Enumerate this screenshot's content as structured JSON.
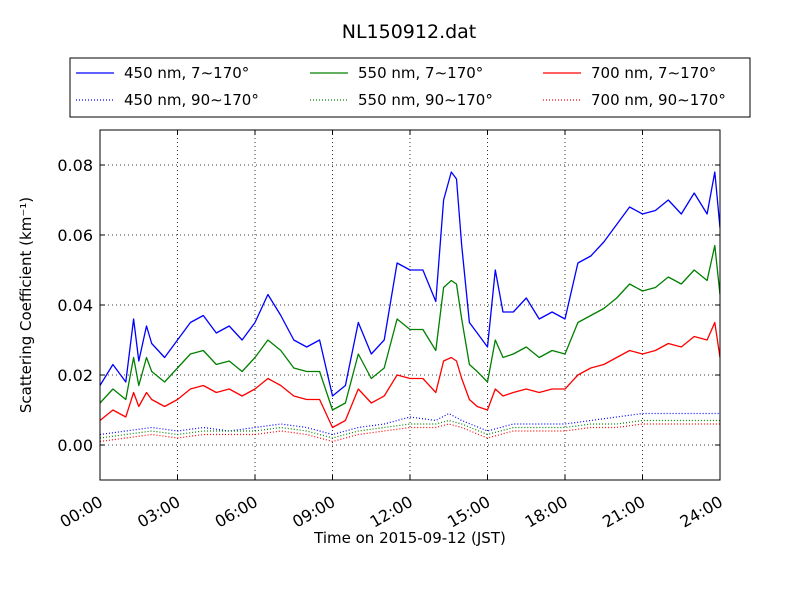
{
  "chart_data": {
    "type": "line",
    "title": "NL150912.dat",
    "xlabel": "Time on 2015-09-12 (JST)",
    "ylabel": "Scattering Coefficient (km⁻¹)",
    "x_range": [
      0,
      24
    ],
    "ylim": [
      -0.01,
      0.09
    ],
    "x_ticks": [
      "00:00",
      "03:00",
      "06:00",
      "09:00",
      "12:00",
      "15:00",
      "18:00",
      "21:00",
      "24:00"
    ],
    "y_ticks": [
      "0.00",
      "0.02",
      "0.04",
      "0.06",
      "0.08"
    ],
    "grid": true,
    "legend_position": "top, above plot",
    "x_unit": "hours since 00:00 JST",
    "series": [
      {
        "name": "450 nm, 7∼170°",
        "color": "#0000ff",
        "style": "solid",
        "x": [
          0,
          0.5,
          1,
          1.3,
          1.5,
          1.8,
          2,
          2.5,
          3,
          3.5,
          4,
          4.5,
          5,
          5.5,
          6,
          6.5,
          7,
          7.5,
          8,
          8.5,
          9,
          9.5,
          10,
          10.5,
          11,
          11.5,
          12,
          12.5,
          13,
          13.3,
          13.6,
          13.8,
          14,
          14.3,
          14.6,
          15,
          15.3,
          15.6,
          16,
          16.5,
          17,
          17.5,
          18,
          18.5,
          19,
          19.5,
          20,
          20.5,
          21,
          21.5,
          22,
          22.5,
          23,
          23.5,
          23.8,
          24
        ],
        "values": [
          0.017,
          0.023,
          0.018,
          0.036,
          0.024,
          0.034,
          0.029,
          0.025,
          0.03,
          0.035,
          0.037,
          0.032,
          0.034,
          0.03,
          0.035,
          0.043,
          0.037,
          0.03,
          0.028,
          0.03,
          0.014,
          0.017,
          0.035,
          0.026,
          0.03,
          0.052,
          0.05,
          0.05,
          0.041,
          0.07,
          0.078,
          0.076,
          0.057,
          0.035,
          0.032,
          0.028,
          0.05,
          0.038,
          0.038,
          0.042,
          0.036,
          0.038,
          0.036,
          0.052,
          0.054,
          0.058,
          0.063,
          0.068,
          0.066,
          0.067,
          0.07,
          0.066,
          0.072,
          0.066,
          0.078,
          0.062
        ]
      },
      {
        "name": "450 nm, 90∼170°",
        "color": "#0000ff",
        "style": "dotted",
        "x": [
          0,
          1,
          2,
          3,
          4,
          5,
          6,
          7,
          8,
          9,
          10,
          11,
          12,
          13,
          13.5,
          14,
          15,
          16,
          17,
          18,
          19,
          20,
          21,
          22,
          23,
          24
        ],
        "values": [
          0.003,
          0.004,
          0.005,
          0.004,
          0.005,
          0.004,
          0.005,
          0.006,
          0.005,
          0.003,
          0.005,
          0.006,
          0.008,
          0.007,
          0.009,
          0.007,
          0.004,
          0.006,
          0.006,
          0.006,
          0.007,
          0.008,
          0.009,
          0.009,
          0.009,
          0.009
        ]
      },
      {
        "name": "550 nm, 7∼170°",
        "color": "#008000",
        "style": "solid",
        "x": [
          0,
          0.5,
          1,
          1.3,
          1.5,
          1.8,
          2,
          2.5,
          3,
          3.5,
          4,
          4.5,
          5,
          5.5,
          6,
          6.5,
          7,
          7.5,
          8,
          8.5,
          9,
          9.5,
          10,
          10.5,
          11,
          11.5,
          12,
          12.5,
          13,
          13.3,
          13.6,
          13.8,
          14,
          14.3,
          14.6,
          15,
          15.3,
          15.6,
          16,
          16.5,
          17,
          17.5,
          18,
          18.5,
          19,
          19.5,
          20,
          20.5,
          21,
          21.5,
          22,
          22.5,
          23,
          23.5,
          23.8,
          24
        ],
        "values": [
          0.012,
          0.016,
          0.013,
          0.025,
          0.017,
          0.025,
          0.021,
          0.018,
          0.022,
          0.026,
          0.027,
          0.023,
          0.024,
          0.021,
          0.025,
          0.03,
          0.027,
          0.022,
          0.021,
          0.021,
          0.01,
          0.012,
          0.026,
          0.019,
          0.022,
          0.036,
          0.033,
          0.033,
          0.027,
          0.045,
          0.047,
          0.046,
          0.036,
          0.023,
          0.021,
          0.018,
          0.03,
          0.025,
          0.026,
          0.028,
          0.025,
          0.027,
          0.026,
          0.035,
          0.037,
          0.039,
          0.042,
          0.046,
          0.044,
          0.045,
          0.048,
          0.046,
          0.05,
          0.047,
          0.057,
          0.043
        ]
      },
      {
        "name": "550 nm, 90∼170°",
        "color": "#008000",
        "style": "dotted",
        "x": [
          0,
          1,
          2,
          3,
          4,
          5,
          6,
          7,
          8,
          9,
          10,
          11,
          12,
          13,
          13.5,
          14,
          15,
          16,
          17,
          18,
          19,
          20,
          21,
          22,
          23,
          24
        ],
        "values": [
          0.002,
          0.003,
          0.004,
          0.003,
          0.004,
          0.004,
          0.004,
          0.005,
          0.004,
          0.002,
          0.004,
          0.005,
          0.006,
          0.006,
          0.007,
          0.006,
          0.003,
          0.005,
          0.005,
          0.005,
          0.006,
          0.006,
          0.007,
          0.007,
          0.007,
          0.007
        ]
      },
      {
        "name": "700 nm, 7∼170°",
        "color": "#ff0000",
        "style": "solid",
        "x": [
          0,
          0.5,
          1,
          1.3,
          1.5,
          1.8,
          2,
          2.5,
          3,
          3.5,
          4,
          4.5,
          5,
          5.5,
          6,
          6.5,
          7,
          7.5,
          8,
          8.5,
          9,
          9.5,
          10,
          10.5,
          11,
          11.5,
          12,
          12.5,
          13,
          13.3,
          13.6,
          13.8,
          14,
          14.3,
          14.6,
          15,
          15.3,
          15.6,
          16,
          16.5,
          17,
          17.5,
          18,
          18.5,
          19,
          19.5,
          20,
          20.5,
          21,
          21.5,
          22,
          22.5,
          23,
          23.5,
          23.8,
          24
        ],
        "values": [
          0.007,
          0.01,
          0.008,
          0.015,
          0.011,
          0.015,
          0.013,
          0.011,
          0.013,
          0.016,
          0.017,
          0.015,
          0.016,
          0.014,
          0.016,
          0.019,
          0.017,
          0.014,
          0.013,
          0.013,
          0.005,
          0.007,
          0.016,
          0.012,
          0.014,
          0.02,
          0.019,
          0.019,
          0.015,
          0.024,
          0.025,
          0.024,
          0.019,
          0.013,
          0.011,
          0.01,
          0.016,
          0.014,
          0.015,
          0.016,
          0.015,
          0.016,
          0.016,
          0.02,
          0.022,
          0.023,
          0.025,
          0.027,
          0.026,
          0.027,
          0.029,
          0.028,
          0.031,
          0.03,
          0.035,
          0.025
        ]
      },
      {
        "name": "700 nm, 90∼170°",
        "color": "#ff0000",
        "style": "dotted",
        "x": [
          0,
          1,
          2,
          3,
          4,
          5,
          6,
          7,
          8,
          9,
          10,
          11,
          12,
          13,
          13.5,
          14,
          15,
          16,
          17,
          18,
          19,
          20,
          21,
          22,
          23,
          24
        ],
        "values": [
          0.001,
          0.002,
          0.003,
          0.002,
          0.003,
          0.003,
          0.003,
          0.004,
          0.003,
          0.001,
          0.003,
          0.004,
          0.005,
          0.005,
          0.006,
          0.005,
          0.002,
          0.004,
          0.004,
          0.004,
          0.005,
          0.005,
          0.006,
          0.006,
          0.006,
          0.006
        ]
      }
    ]
  }
}
